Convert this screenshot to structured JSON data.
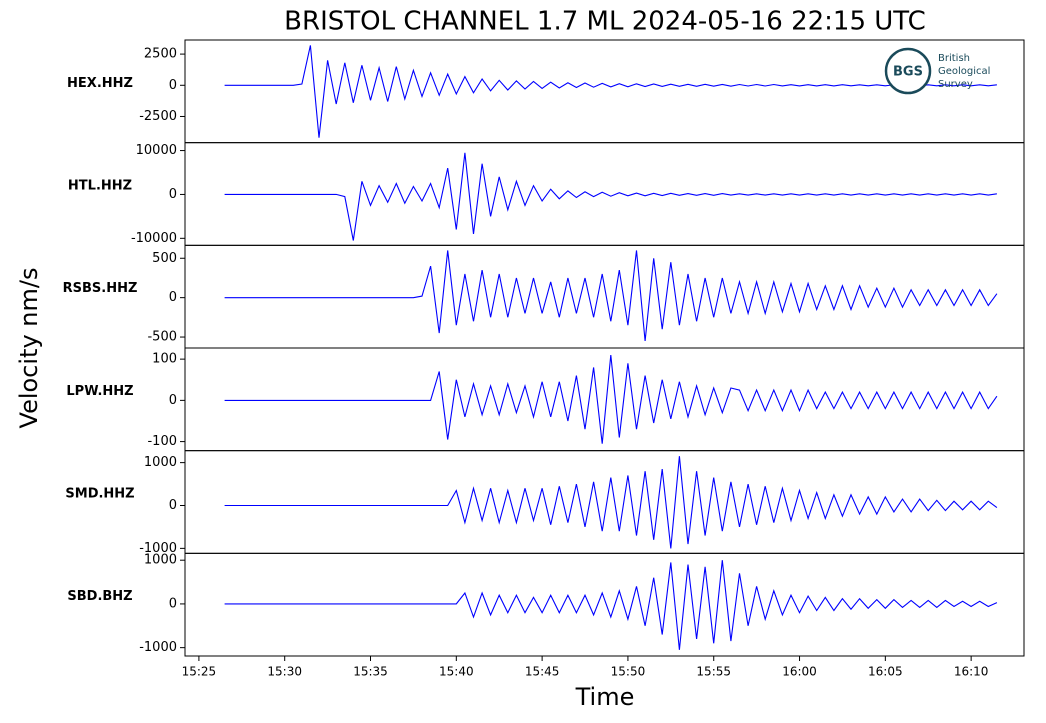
{
  "chart_data": {
    "type": "line",
    "title": "BRISTOL CHANNEL 1.7 ML   2024-05-16 22:15 UTC",
    "ylabel": "Velocity nm/s",
    "xlabel": "Time",
    "logo": {
      "abbr": "BGS",
      "lines": [
        "British",
        "Geological",
        "Survey"
      ]
    },
    "xlim": [
      24.19,
      73.08
    ],
    "xticks": [
      {
        "value": 25,
        "label": "15:25"
      },
      {
        "value": 30,
        "label": "15:30"
      },
      {
        "value": 35,
        "label": "15:35"
      },
      {
        "value": 40,
        "label": "15:40"
      },
      {
        "value": 45,
        "label": "15:45"
      },
      {
        "value": 50,
        "label": "15:50"
      },
      {
        "value": 55,
        "label": "15:55"
      },
      {
        "value": 60,
        "label": "16:00"
      },
      {
        "value": 65,
        "label": "16:05"
      },
      {
        "value": 70,
        "label": "16:10"
      }
    ],
    "x": [
      26.5,
      27,
      27.5,
      28,
      28.5,
      29,
      29.5,
      30,
      30.5,
      31,
      31.5,
      32,
      32.5,
      33,
      33.5,
      34,
      34.5,
      35,
      35.5,
      36,
      36.5,
      37,
      37.5,
      38,
      38.5,
      39,
      39.5,
      40,
      40.5,
      41,
      41.5,
      42,
      42.5,
      43,
      43.5,
      44,
      44.5,
      45,
      45.5,
      46,
      46.5,
      47,
      47.5,
      48,
      48.5,
      49,
      49.5,
      50,
      50.5,
      51,
      51.5,
      52,
      52.5,
      53,
      53.5,
      54,
      54.5,
      55,
      55.5,
      56,
      56.5,
      57,
      57.5,
      58,
      58.5,
      59,
      59.5,
      60,
      60.5,
      61,
      61.5,
      62,
      62.5,
      63,
      63.5,
      64,
      64.5,
      65,
      65.5,
      66,
      66.5,
      67,
      67.5,
      68,
      68.5,
      69,
      69.5,
      70,
      70.5,
      71,
      71.5
    ],
    "series": [
      {
        "name": "HEX.HHZ",
        "color": "#0000ff",
        "ylim": [
          -4600,
          3630
        ],
        "yticks": [
          -2500,
          0,
          2500
        ],
        "values": [
          0,
          0,
          0,
          0,
          0,
          0,
          0,
          0,
          0,
          100,
          3200,
          -4200,
          2000,
          -1500,
          1800,
          -1400,
          1600,
          -1200,
          1400,
          -1300,
          1500,
          -1100,
          1200,
          -900,
          1000,
          -800,
          900,
          -700,
          700,
          -600,
          500,
          -450,
          400,
          -380,
          350,
          -300,
          300,
          -250,
          250,
          -220,
          200,
          -180,
          180,
          -150,
          150,
          -130,
          130,
          -120,
          120,
          -100,
          100,
          -90,
          90,
          -80,
          80,
          -80,
          80,
          -70,
          70,
          -70,
          60,
          -60,
          60,
          -60,
          60,
          -50,
          50,
          -50,
          50,
          -50,
          50,
          -50,
          50,
          -40,
          40,
          -40,
          40,
          -40,
          40,
          -40,
          40,
          -40,
          40,
          -40,
          40,
          -40,
          40,
          -40,
          40,
          -40,
          40
        ]
      },
      {
        "name": "HTL.HHZ",
        "color": "#0000ff",
        "ylim": [
          -11600,
          11800
        ],
        "yticks": [
          -10000,
          0,
          10000
        ],
        "values": [
          0,
          0,
          0,
          0,
          0,
          0,
          0,
          0,
          0,
          0,
          0,
          0,
          0,
          0,
          -500,
          -10500,
          3000,
          -2500,
          2000,
          -1800,
          2500,
          -2000,
          1800,
          -1500,
          2500,
          -3000,
          6000,
          -8000,
          9500,
          -9000,
          7000,
          -5000,
          4000,
          -3500,
          3000,
          -2500,
          2000,
          -1500,
          1200,
          -1000,
          800,
          -700,
          600,
          -500,
          500,
          -400,
          400,
          -300,
          300,
          -300,
          250,
          -250,
          250,
          -200,
          200,
          -200,
          200,
          -200,
          200,
          -150,
          150,
          -150,
          150,
          -150,
          150,
          -150,
          150,
          -150,
          150,
          -150,
          150,
          -150,
          150,
          -150,
          150,
          -150,
          150,
          -150,
          150,
          -150,
          150,
          -150,
          150,
          -150,
          150,
          -150,
          150,
          -150,
          150,
          -150,
          150
        ]
      },
      {
        "name": "RSBS.HHZ",
        "color": "#0000ff",
        "ylim": [
          -639,
          664
        ],
        "yticks": [
          -500,
          0,
          500
        ],
        "values": [
          0,
          0,
          0,
          0,
          0,
          0,
          0,
          0,
          0,
          0,
          0,
          0,
          0,
          0,
          0,
          0,
          0,
          0,
          0,
          0,
          0,
          0,
          0,
          20,
          400,
          -450,
          600,
          -350,
          300,
          -300,
          350,
          -250,
          300,
          -250,
          250,
          -200,
          250,
          -200,
          200,
          -250,
          250,
          -200,
          250,
          -250,
          300,
          -300,
          350,
          -350,
          600,
          -550,
          500,
          -400,
          450,
          -350,
          300,
          -300,
          250,
          -250,
          250,
          -200,
          200,
          -200,
          200,
          -200,
          200,
          -180,
          180,
          -180,
          180,
          -150,
          150,
          -150,
          150,
          -150,
          150,
          -120,
          120,
          -120,
          120,
          -120,
          100,
          -100,
          100,
          -100,
          100,
          -100,
          100,
          -100,
          100,
          -100,
          50
        ]
      },
      {
        "name": "LPW.HHZ",
        "color": "#0000ff",
        "ylim": [
          -122,
          127
        ],
        "yticks": [
          -100,
          0,
          100
        ],
        "values": [
          0,
          0,
          0,
          0,
          0,
          0,
          0,
          0,
          0,
          0,
          0,
          0,
          0,
          0,
          0,
          0,
          0,
          0,
          0,
          0,
          0,
          0,
          0,
          0,
          0,
          70,
          -95,
          50,
          -40,
          40,
          -35,
          35,
          -35,
          40,
          -30,
          35,
          -40,
          45,
          -40,
          45,
          -50,
          60,
          -70,
          80,
          -105,
          110,
          -90,
          90,
          -70,
          60,
          -55,
          50,
          -45,
          45,
          -40,
          35,
          -35,
          30,
          -30,
          30,
          25,
          -25,
          25,
          -25,
          25,
          -25,
          25,
          -25,
          25,
          -20,
          20,
          -20,
          20,
          -20,
          20,
          -20,
          20,
          -20,
          20,
          -20,
          20,
          -20,
          20,
          -20,
          20,
          -20,
          20,
          -20,
          20,
          -20,
          10
        ]
      },
      {
        "name": "SMD.HHZ",
        "color": "#0000ff",
        "ylim": [
          -1116,
          1279
        ],
        "yticks": [
          -1000,
          0,
          1000
        ],
        "values": [
          0,
          0,
          0,
          0,
          0,
          0,
          0,
          0,
          0,
          0,
          0,
          0,
          0,
          0,
          0,
          0,
          0,
          0,
          0,
          0,
          0,
          0,
          0,
          0,
          0,
          0,
          0,
          350,
          -400,
          400,
          -350,
          400,
          -400,
          350,
          -400,
          400,
          -350,
          400,
          -450,
          450,
          -400,
          500,
          -500,
          550,
          -600,
          650,
          -600,
          700,
          -700,
          800,
          -800,
          850,
          -1000,
          1150,
          -900,
          800,
          -700,
          650,
          -600,
          550,
          -500,
          500,
          -450,
          450,
          -400,
          400,
          -350,
          350,
          -300,
          300,
          -300,
          250,
          -250,
          250,
          -200,
          200,
          -200,
          200,
          -150,
          150,
          -150,
          150,
          -120,
          120,
          -120,
          100,
          -100,
          100,
          -100,
          100,
          -50
        ]
      },
      {
        "name": "SBD.BHZ",
        "color": "#0000ff",
        "ylim": [
          -1191,
          1157
        ],
        "yticks": [
          -1000,
          0,
          1000
        ],
        "values": [
          0,
          0,
          0,
          0,
          0,
          0,
          0,
          0,
          0,
          0,
          0,
          0,
          0,
          0,
          0,
          0,
          0,
          0,
          0,
          0,
          0,
          0,
          0,
          0,
          0,
          0,
          0,
          0,
          250,
          -300,
          250,
          -250,
          200,
          -200,
          200,
          -200,
          150,
          -200,
          200,
          -200,
          200,
          -200,
          200,
          -250,
          250,
          -300,
          300,
          -350,
          400,
          -500,
          600,
          -700,
          950,
          -1050,
          900,
          -800,
          850,
          -900,
          1000,
          -850,
          700,
          -500,
          400,
          -350,
          300,
          -250,
          200,
          -200,
          180,
          -150,
          150,
          -150,
          120,
          -120,
          120,
          -100,
          100,
          -100,
          100,
          -80,
          80,
          -80,
          80,
          -80,
          80,
          -60,
          60,
          -60,
          60,
          -60,
          30
        ]
      }
    ]
  }
}
